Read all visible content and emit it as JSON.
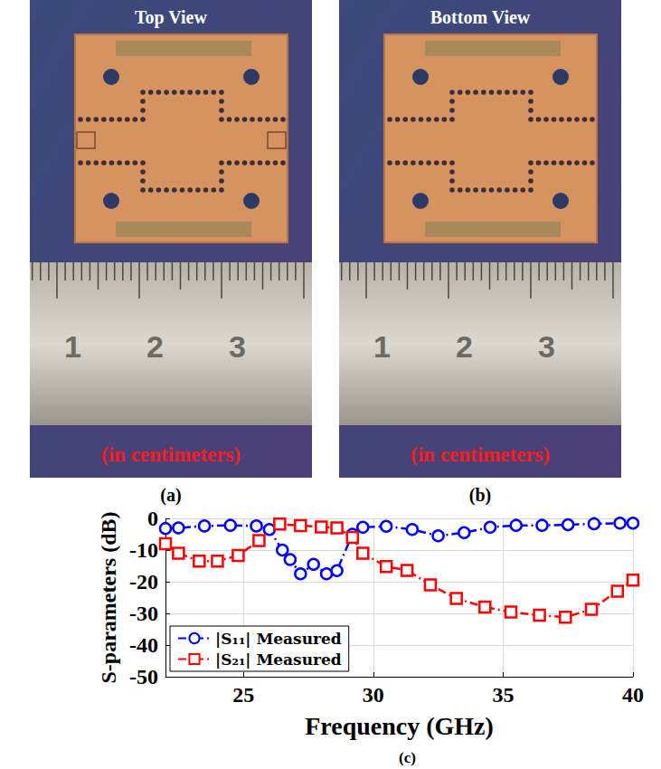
{
  "chart_data": {
    "type": "line",
    "xlabel": "Frequency (GHz)",
    "ylabel": "S-parameters (dB)",
    "panel": "(c)",
    "xlim": [
      22,
      40
    ],
    "xticks": [
      25,
      30,
      35,
      40
    ],
    "ylim": [
      -50,
      0
    ],
    "yticks": [
      -50,
      -40,
      -30,
      -20,
      -10,
      0
    ],
    "grid": true,
    "legend": "lower left",
    "series": [
      {
        "name": "|S₁₁| Measured",
        "color": "#0000ff",
        "marker": "circle",
        "line_style": "dashdot",
        "x": [
          22,
          22.5,
          23.5,
          24.5,
          25.5,
          26,
          26.5,
          26.8,
          27.2,
          27.7,
          28.2,
          28.6,
          29.2,
          29.6,
          30.5,
          31.5,
          32.5,
          33.5,
          34.5,
          35.5,
          36.5,
          37.5,
          38.5,
          39.5,
          40
        ],
        "values": [
          -3.2,
          -3,
          -2.4,
          -2.2,
          -2.4,
          -3.5,
          -10,
          -13,
          -17.5,
          -14.5,
          -17.5,
          -16.5,
          -5,
          -2.8,
          -2.5,
          -3.5,
          -5.5,
          -4.5,
          -2.8,
          -2.2,
          -2.2,
          -2,
          -1.7,
          -1.5,
          -1.5
        ]
      },
      {
        "name": "|S₂₁| Measured",
        "color": "#ff0000",
        "marker": "square",
        "line_style": "dashdot",
        "x": [
          22,
          22.5,
          23.3,
          24,
          24.8,
          25.6,
          26.4,
          27.2,
          28,
          28.6,
          29.2,
          29.6,
          30.5,
          31.3,
          32.2,
          33.2,
          34.3,
          35.3,
          36.4,
          37.4,
          38.4,
          39.4,
          40
        ],
        "values": [
          -8,
          -11,
          -13.5,
          -13.5,
          -11.7,
          -7,
          -1.8,
          -2.3,
          -2.7,
          -3,
          -6,
          -11,
          -15.2,
          -16.4,
          -21,
          -25.3,
          -28,
          -29.6,
          -30.6,
          -31.2,
          -28.7,
          -23,
          -19.5
        ]
      }
    ]
  },
  "photos": [
    {
      "panel": "(a)",
      "title": "Top View",
      "ruler_labels": [
        1,
        2,
        3
      ],
      "ruler_caption": "(in centimeters)"
    },
    {
      "panel": "(b)",
      "title": "Bottom View",
      "ruler_labels": [
        1,
        2,
        3
      ],
      "ruler_caption": "(in centimeters)"
    }
  ]
}
